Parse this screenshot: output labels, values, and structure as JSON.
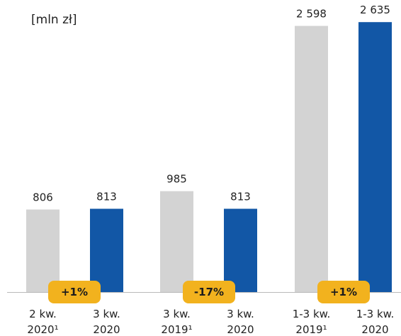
{
  "chart_data": {
    "type": "bar",
    "unit_label": "[mln zł]",
    "categories": [
      [
        "2 kw.",
        "2020¹"
      ],
      [
        "3 kw.",
        "2020"
      ],
      [
        "3 kw.",
        "2019¹"
      ],
      [
        "3 kw.",
        "2020"
      ],
      [
        "1-3 kw.",
        "2019¹"
      ],
      [
        "1-3 kw.",
        "2020"
      ]
    ],
    "values": [
      806,
      813,
      985,
      813,
      2598,
      2635
    ],
    "value_labels": [
      "806",
      "813",
      "985",
      "813",
      "2 598",
      "2 635"
    ],
    "bar_colors": [
      "#d3d3d3",
      "#1257a6",
      "#d3d3d3",
      "#1257a6",
      "#d3d3d3",
      "#1257a6"
    ],
    "change_badges": [
      "+1%",
      "-17%",
      "+1%"
    ],
    "badge_color": "#f2b21e",
    "ylim": [
      0,
      2700
    ]
  }
}
